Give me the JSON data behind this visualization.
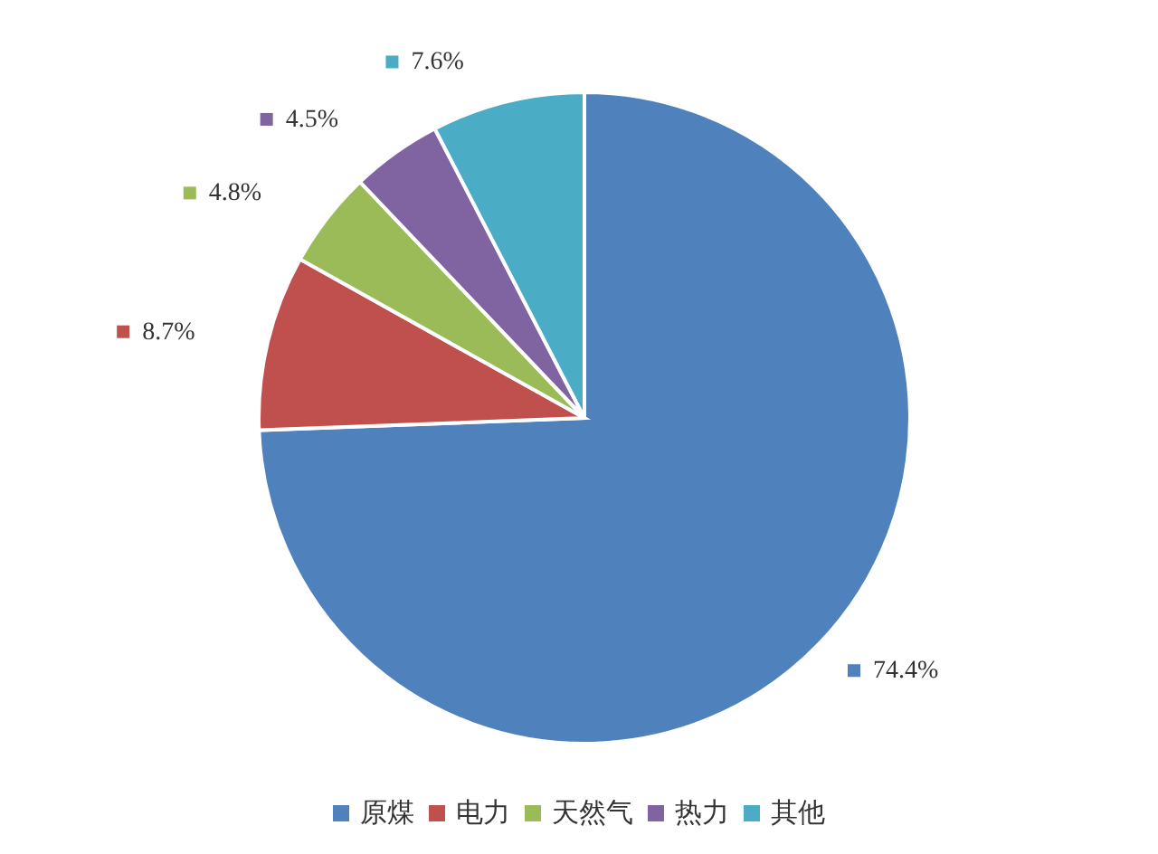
{
  "chart_data": {
    "type": "pie",
    "categories": [
      "原煤",
      "电力",
      "天然气",
      "热力",
      "其他"
    ],
    "values": [
      74.4,
      8.7,
      4.8,
      4.5,
      7.6
    ],
    "colors": [
      "#4f81bd",
      "#c0504d",
      "#9bbb59",
      "#8064a2",
      "#4bacc6"
    ],
    "value_labels": [
      "74.4%",
      "8.7%",
      "4.8%",
      "4.5%",
      "7.6%"
    ],
    "legend": "bottom"
  }
}
